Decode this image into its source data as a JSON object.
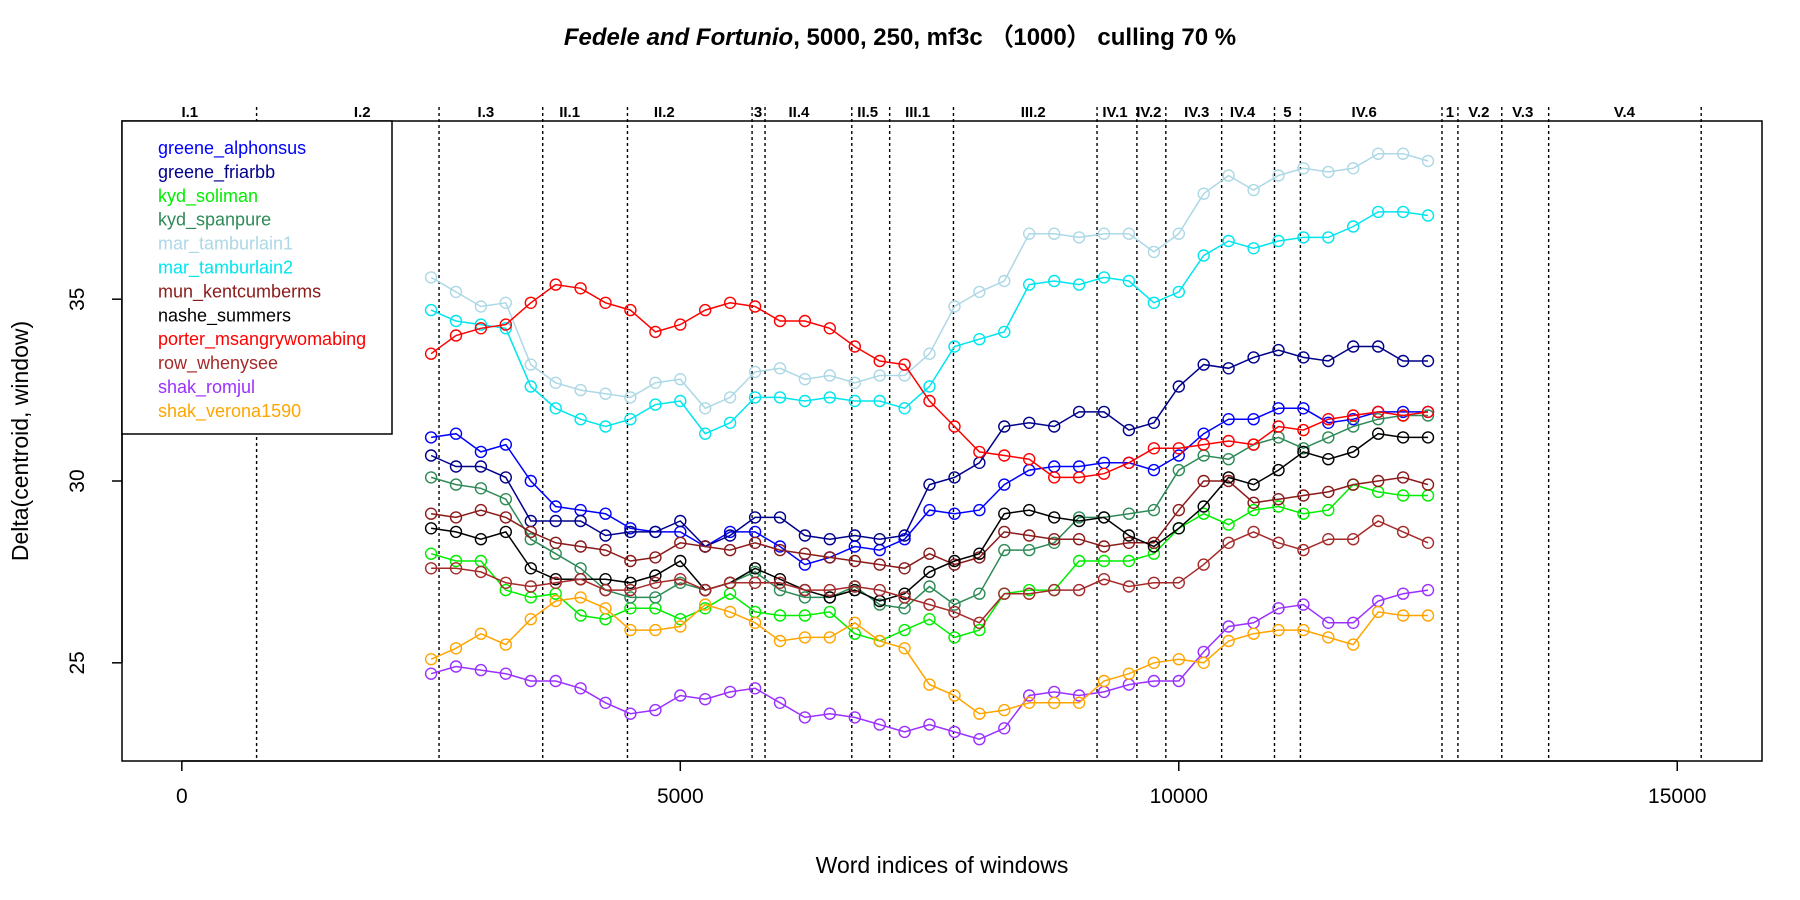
{
  "chart_data": {
    "type": "line",
    "title": {
      "italic": "Fedele and Fortunio",
      "rest": ", 5000, 250, mf3c （1000） culling 70 %"
    },
    "xlabel": "Word indices of windows",
    "ylabel": "Delta(centroid, window)",
    "xlim": [
      -600,
      15850
    ],
    "ylim": [
      22.3,
      39.9
    ],
    "xticks": [
      0,
      5000,
      10000,
      15000
    ],
    "yticks": [
      25,
      30,
      35
    ],
    "grid": false,
    "legend_position": "top-left",
    "scene_boundaries": [
      750,
      2580,
      3620,
      4470,
      5720,
      5850,
      6720,
      7100,
      7740,
      9180,
      9580,
      9870,
      10430,
      10960,
      11220,
      12640,
      12800,
      13240,
      13710,
      15240
    ],
    "scenes": [
      {
        "label": "I.1",
        "x": 80
      },
      {
        "label": "I.2",
        "x": 1810
      },
      {
        "label": "I.3",
        "x": 3050
      },
      {
        "label": "II.1",
        "x": 3890
      },
      {
        "label": "II.2",
        "x": 4840
      },
      {
        "label": "3",
        "x": 5780
      },
      {
        "label": "II.4",
        "x": 6190
      },
      {
        "label": "II.5",
        "x": 6880
      },
      {
        "label": "III.1",
        "x": 7380
      },
      {
        "label": "III.2",
        "x": 8540
      },
      {
        "label": "IV.1",
        "x": 9360
      },
      {
        "label": "IV.2",
        "x": 9700
      },
      {
        "label": "IV.3",
        "x": 10180
      },
      {
        "label": "IV.4",
        "x": 10640
      },
      {
        "label": "5",
        "x": 11090
      },
      {
        "label": "IV.6",
        "x": 11860
      },
      {
        "label": "1",
        "x": 12720
      },
      {
        "label": "V.2",
        "x": 13010
      },
      {
        "label": "V.3",
        "x": 13450
      },
      {
        "label": "V.4",
        "x": 14470
      }
    ],
    "x": [
      2500,
      2750,
      3000,
      3250,
      3500,
      3750,
      4000,
      4250,
      4500,
      4750,
      5000,
      5250,
      5500,
      5750,
      6000,
      6250,
      6500,
      6750,
      7000,
      7250,
      7500,
      7750,
      8000,
      8250,
      8500,
      8750,
      9000,
      9250,
      9500,
      9750,
      10000,
      10250,
      10500,
      10750,
      11000,
      11250,
      11500,
      11750,
      12000,
      12250,
      12500
    ],
    "series": [
      {
        "name": "greene_alphonsus",
        "color": "#0000ff",
        "values": [
          31.2,
          31.3,
          30.8,
          31.0,
          30.0,
          29.3,
          29.2,
          29.1,
          28.7,
          28.6,
          28.6,
          28.2,
          28.6,
          28.6,
          28.2,
          27.7,
          27.9,
          28.2,
          28.1,
          28.4,
          29.2,
          29.1,
          29.2,
          29.9,
          30.3,
          30.4,
          30.4,
          30.5,
          30.5,
          30.3,
          30.7,
          31.3,
          31.7,
          31.7,
          32.0,
          32.0,
          31.6,
          31.7,
          31.9,
          31.9,
          31.9
        ]
      },
      {
        "name": "greene_friarbb",
        "color": "#00008b",
        "values": [
          30.7,
          30.4,
          30.4,
          30.1,
          28.9,
          28.9,
          28.9,
          28.5,
          28.6,
          28.6,
          28.9,
          28.2,
          28.5,
          29.0,
          29.0,
          28.5,
          28.4,
          28.5,
          28.4,
          28.5,
          29.9,
          30.1,
          30.5,
          31.5,
          31.6,
          31.5,
          31.9,
          31.9,
          31.4,
          31.6,
          32.6,
          33.2,
          33.1,
          33.4,
          33.6,
          33.4,
          33.3,
          33.7,
          33.7,
          33.3,
          33.3
        ]
      },
      {
        "name": "kyd_soliman",
        "color": "#00ee00",
        "values": [
          28.0,
          27.8,
          27.8,
          27.0,
          26.8,
          26.9,
          26.3,
          26.2,
          26.5,
          26.5,
          26.2,
          26.5,
          26.9,
          26.4,
          26.3,
          26.3,
          26.4,
          25.8,
          25.6,
          25.9,
          26.2,
          25.7,
          25.9,
          26.9,
          27.0,
          27.0,
          27.8,
          27.8,
          27.8,
          28.0,
          28.7,
          29.1,
          28.8,
          29.2,
          29.3,
          29.1,
          29.2,
          29.9,
          29.7,
          29.6,
          29.6
        ]
      },
      {
        "name": "kyd_spanpure",
        "color": "#2e8b57",
        "values": [
          30.1,
          29.9,
          29.8,
          29.5,
          28.4,
          28.0,
          27.6,
          27.0,
          26.8,
          26.8,
          27.2,
          27.0,
          27.2,
          27.5,
          27.0,
          26.8,
          26.8,
          27.1,
          26.6,
          26.5,
          27.1,
          26.6,
          26.9,
          28.1,
          28.1,
          28.3,
          29.0,
          29.0,
          29.1,
          29.2,
          30.3,
          30.7,
          30.6,
          31.0,
          31.2,
          30.9,
          31.2,
          31.5,
          31.7,
          31.8,
          31.8
        ]
      },
      {
        "name": "mar_tamburlain1",
        "color": "#add8e6",
        "values": [
          35.6,
          35.2,
          34.8,
          34.9,
          33.2,
          32.7,
          32.5,
          32.4,
          32.3,
          32.7,
          32.8,
          32.0,
          32.3,
          33.0,
          33.1,
          32.8,
          32.9,
          32.7,
          32.9,
          32.9,
          33.5,
          34.8,
          35.2,
          35.5,
          36.8,
          36.8,
          36.7,
          36.8,
          36.8,
          36.3,
          36.8,
          37.9,
          38.4,
          38.0,
          38.4,
          38.6,
          38.5,
          38.6,
          39.0,
          39.0,
          38.8
        ]
      },
      {
        "name": "mar_tamburlain2",
        "color": "#00e5ee",
        "values": [
          34.7,
          34.4,
          34.3,
          34.2,
          32.6,
          32.0,
          31.7,
          31.5,
          31.7,
          32.1,
          32.2,
          31.3,
          31.6,
          32.3,
          32.3,
          32.2,
          32.3,
          32.2,
          32.2,
          32.0,
          32.6,
          33.7,
          33.9,
          34.1,
          35.4,
          35.5,
          35.4,
          35.6,
          35.5,
          34.9,
          35.2,
          36.2,
          36.6,
          36.4,
          36.6,
          36.7,
          36.7,
          37.0,
          37.4,
          37.4,
          37.3
        ]
      },
      {
        "name": "mun_kentcumberms",
        "color": "#8b1a1a",
        "values": [
          29.1,
          29.0,
          29.2,
          29.0,
          28.6,
          28.3,
          28.2,
          28.1,
          27.8,
          27.9,
          28.3,
          28.2,
          28.1,
          28.3,
          28.1,
          28.0,
          27.9,
          27.8,
          27.7,
          27.6,
          28.0,
          27.7,
          27.9,
          28.6,
          28.5,
          28.4,
          28.4,
          28.2,
          28.3,
          28.3,
          29.2,
          30.0,
          30.0,
          29.4,
          29.5,
          29.6,
          29.7,
          29.9,
          30.0,
          30.1,
          29.9
        ]
      },
      {
        "name": "nashe_summers",
        "color": "#000000",
        "values": [
          28.7,
          28.6,
          28.4,
          28.6,
          27.6,
          27.3,
          27.3,
          27.3,
          27.2,
          27.4,
          27.8,
          27.0,
          27.2,
          27.6,
          27.3,
          27.0,
          26.8,
          27.0,
          26.7,
          26.9,
          27.5,
          27.8,
          28.0,
          29.1,
          29.2,
          29.0,
          28.9,
          29.0,
          28.5,
          28.2,
          28.7,
          29.3,
          30.1,
          29.9,
          30.3,
          30.8,
          30.6,
          30.8,
          31.3,
          31.2,
          31.2
        ]
      },
      {
        "name": "porter_msangrywomabing",
        "color": "#ff0000",
        "values": [
          33.5,
          34.0,
          34.2,
          34.3,
          34.9,
          35.4,
          35.3,
          34.9,
          34.7,
          34.1,
          34.3,
          34.7,
          34.9,
          34.8,
          34.4,
          34.4,
          34.2,
          33.7,
          33.3,
          33.2,
          32.2,
          31.5,
          30.8,
          30.7,
          30.6,
          30.1,
          30.1,
          30.2,
          30.5,
          30.9,
          30.9,
          31.0,
          31.1,
          31.0,
          31.5,
          31.4,
          31.7,
          31.8,
          31.9,
          31.8,
          31.9
        ]
      },
      {
        "name": "row_whenysee",
        "color": "#a52a2a",
        "values": [
          27.6,
          27.6,
          27.5,
          27.2,
          27.1,
          27.2,
          27.3,
          27.0,
          27.0,
          27.2,
          27.3,
          27.0,
          27.2,
          27.2,
          27.2,
          27.0,
          27.0,
          27.1,
          27.0,
          26.8,
          26.6,
          26.4,
          26.1,
          26.9,
          26.9,
          27.0,
          27.0,
          27.3,
          27.1,
          27.2,
          27.2,
          27.7,
          28.3,
          28.6,
          28.3,
          28.1,
          28.4,
          28.4,
          28.9,
          28.6,
          28.3
        ]
      },
      {
        "name": "shak_romjul",
        "color": "#9b30ff",
        "values": [
          24.7,
          24.9,
          24.8,
          24.7,
          24.5,
          24.5,
          24.3,
          23.9,
          23.6,
          23.7,
          24.1,
          24.0,
          24.2,
          24.3,
          23.9,
          23.5,
          23.6,
          23.5,
          23.3,
          23.1,
          23.3,
          23.1,
          22.9,
          23.2,
          24.1,
          24.2,
          24.1,
          24.2,
          24.4,
          24.5,
          24.5,
          25.3,
          26.0,
          26.1,
          26.5,
          26.6,
          26.1,
          26.1,
          26.7,
          26.9,
          27.0
        ]
      },
      {
        "name": "shak_verona1590",
        "color": "#ffa500",
        "values": [
          25.1,
          25.4,
          25.8,
          25.5,
          26.2,
          26.7,
          26.8,
          26.5,
          25.9,
          25.9,
          26.0,
          26.6,
          26.4,
          26.1,
          25.6,
          25.7,
          25.7,
          26.1,
          25.6,
          25.4,
          24.4,
          24.1,
          23.6,
          23.7,
          23.9,
          23.9,
          23.9,
          24.5,
          24.7,
          25.0,
          25.1,
          25.0,
          25.6,
          25.8,
          25.9,
          25.9,
          25.7,
          25.5,
          26.4,
          26.3,
          26.3
        ]
      }
    ]
  }
}
